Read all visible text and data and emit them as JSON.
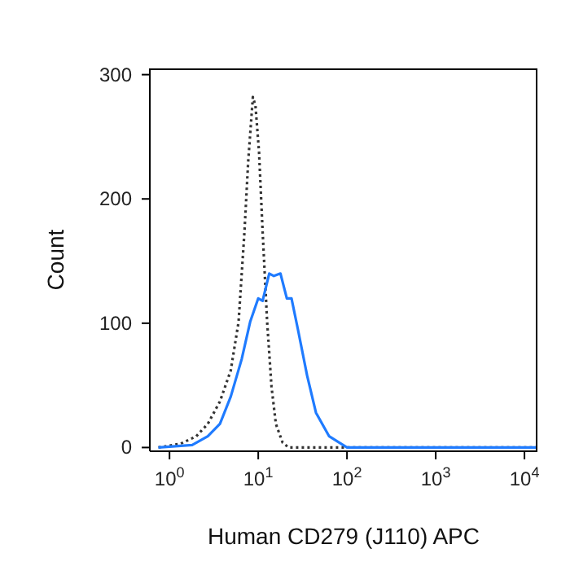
{
  "chart_data": {
    "type": "line",
    "xlabel": "Human CD279 (J110) APC",
    "ylabel": "Count",
    "log": "x",
    "xlim": [
      0.6,
      14000
    ],
    "xticks": [
      {
        "value": 1,
        "label": "10$^{0}$"
      },
      {
        "value": 10,
        "label": "10$^{1}$"
      },
      {
        "value": 100,
        "label": "10$^{2}$"
      },
      {
        "value": 1000,
        "label": "10$^{3}$"
      },
      {
        "value": 10000,
        "label": "10$^{4}$"
      }
    ],
    "ylim": [
      -3,
      305
    ],
    "yticks": [
      0,
      100,
      200,
      300
    ],
    "marker": "none",
    "series": [
      {
        "color": "#333333",
        "line_style": "dotted",
        "x": [
          0.75,
          1.33,
          2.0,
          2.7,
          3.7,
          4.9,
          6.0,
          7.0,
          7.7,
          8.7,
          9.3,
          10.2,
          11.2,
          12.6,
          14.1,
          15.8,
          18.8,
          22,
          100,
          1000,
          14000
        ],
        "values": [
          0,
          3,
          9,
          19,
          37,
          62,
          101,
          174,
          230,
          282,
          275,
          238,
          174,
          101,
          49,
          19,
          4,
          0,
          0,
          0,
          0
        ]
      },
      {
        "color": "#1f7bff",
        "line_style": "solid",
        "x": [
          0.75,
          1.8,
          2.7,
          3.7,
          4.9,
          6.5,
          8.1,
          10,
          11.2,
          13.3,
          15,
          17.8,
          21,
          23.7,
          28,
          35.5,
          44.7,
          63,
          100,
          1000,
          14000
        ],
        "values": [
          0,
          2,
          9,
          19,
          41,
          71,
          101,
          120,
          118,
          140,
          138,
          140,
          120,
          120,
          95,
          58,
          28,
          9,
          0,
          0,
          0
        ]
      }
    ]
  }
}
